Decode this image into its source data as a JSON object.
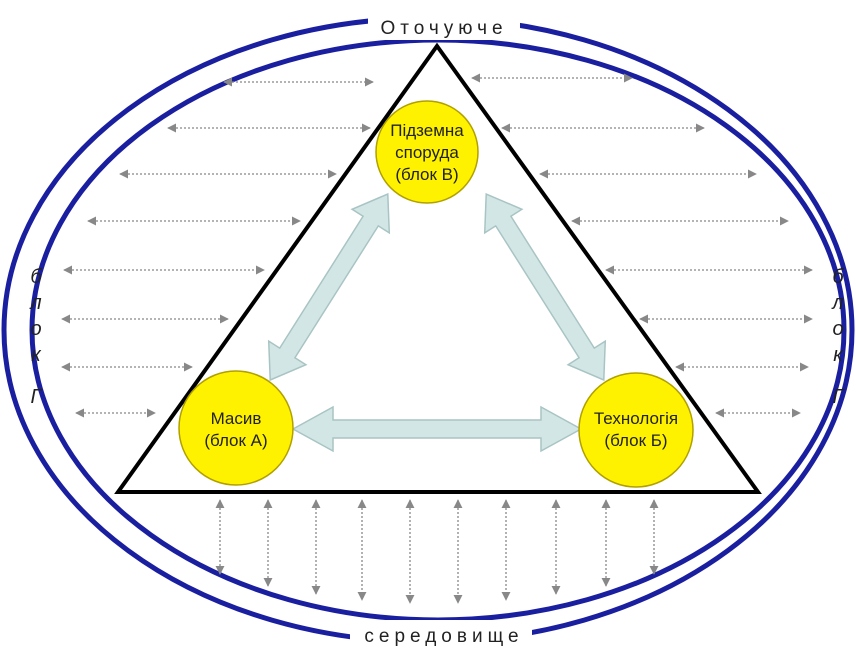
{
  "environment": {
    "top_label": "Оточуюче",
    "bottom_label": "середовище",
    "left_label_letters": [
      "б",
      "л",
      "о",
      "к",
      "Г"
    ],
    "right_label_letters": [
      "б",
      "л",
      "о",
      "к",
      "Г"
    ]
  },
  "nodes": {
    "top": {
      "line1": "Підземна",
      "line2": "споруда",
      "line3": "(блок В)"
    },
    "left": {
      "line1": "Масив",
      "line2": "(блок А)"
    },
    "right": {
      "line1": "Технологія",
      "line2": "(блок Б)"
    }
  },
  "colors": {
    "ellipse": "#1a1fa0",
    "triangle": "#000000",
    "node_fill": "#fff200",
    "node_stroke": "#b0a000",
    "big_arrow_fill": "#d3e6e6",
    "big_arrow_stroke": "#a9c4c4",
    "small_arrow": "#888888"
  }
}
